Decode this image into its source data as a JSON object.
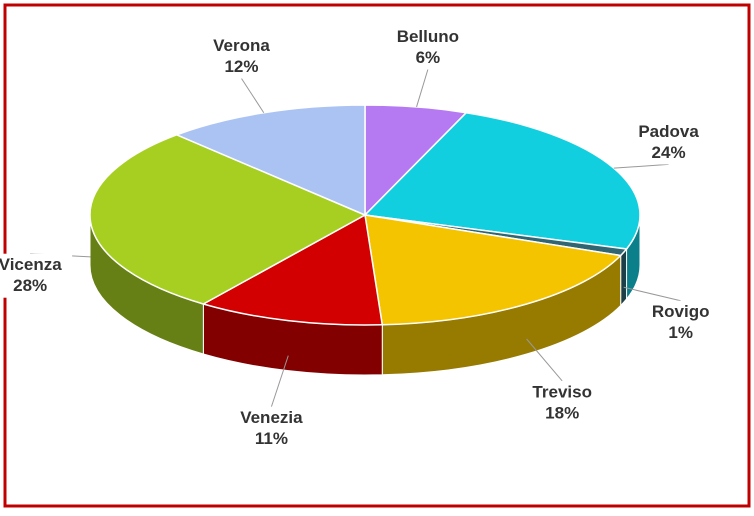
{
  "chart_data": {
    "type": "pie",
    "categories": [
      "Belluno",
      "Padova",
      "Rovigo",
      "Treviso",
      "Venezia",
      "Vicenza",
      "Verona"
    ],
    "values": [
      6,
      24,
      1,
      18,
      11,
      28,
      12
    ],
    "value_labels": [
      "6%",
      "24%",
      "1%",
      "18%",
      "11%",
      "28%",
      "12%"
    ],
    "colors": [
      "#b57af2",
      "#12cfe0",
      "#2f6672",
      "#f4c400",
      "#d20000",
      "#a6cf22",
      "#aac3f2"
    ]
  }
}
